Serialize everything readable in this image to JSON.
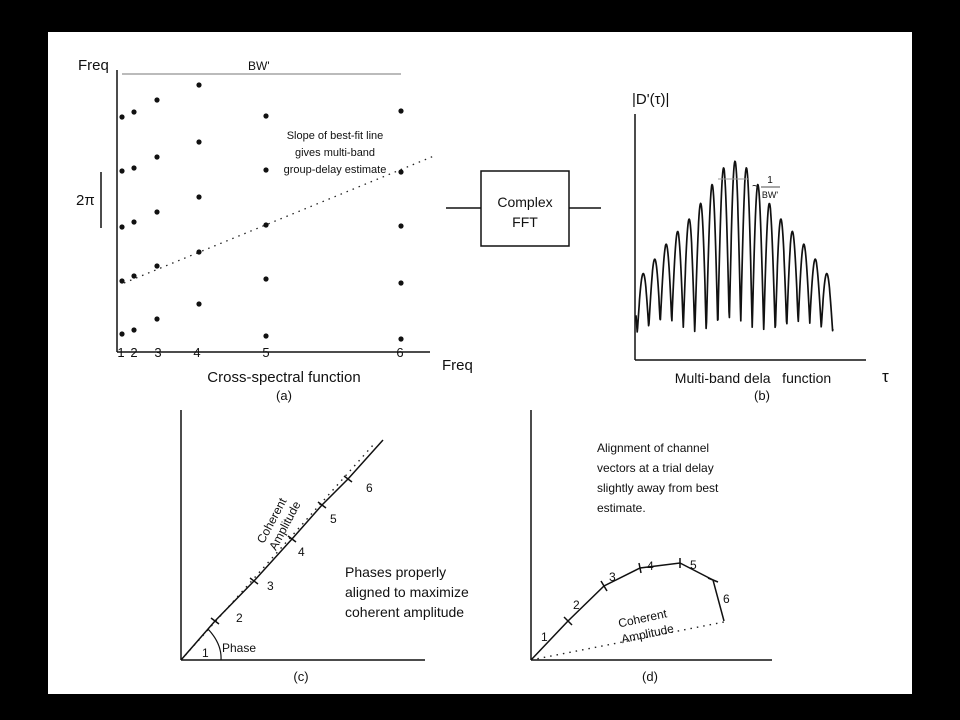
{
  "panel_a": {
    "y_axis_label": "Freq",
    "x_axis_label": "Freq",
    "bandwidth_label": "BW'",
    "two_pi_label": "2π",
    "annotation": [
      "Slope of best-fit line",
      "gives multi-band",
      "group-delay estimate"
    ],
    "channel_labels": [
      "1",
      "2",
      "3",
      "4",
      "5",
      "6"
    ],
    "caption": "Cross-spectral function",
    "letter": "(a)"
  },
  "fft_box": {
    "line1": "Complex",
    "line2": "FFT"
  },
  "panel_b": {
    "y_label": "|D'(τ)|",
    "x_label": "τ",
    "width_tilde": "~",
    "width_numerator": "1",
    "width_denominator": "BW'",
    "caption": "Multi-band dela   function",
    "letter": "(b)"
  },
  "panel_c": {
    "coherent_line1": "Coherent",
    "coherent_line2": "Amplitude",
    "phase_label": "Phase",
    "segment_labels": [
      "1",
      "2",
      "3",
      "4",
      "5",
      "6"
    ],
    "note": [
      "Phases properly",
      "aligned to maximize",
      "coherent amplitude"
    ],
    "letter": "(c)"
  },
  "panel_d": {
    "note": [
      "Alignment of channel",
      "vectors at a trial delay",
      "slightly away from best",
      "estimate."
    ],
    "segment_labels": [
      "1",
      "2",
      "3",
      "4",
      "5",
      "6"
    ],
    "coherent_line1": "Coherent",
    "coherent_line2": "Amplitude",
    "letter": "(d)"
  }
}
